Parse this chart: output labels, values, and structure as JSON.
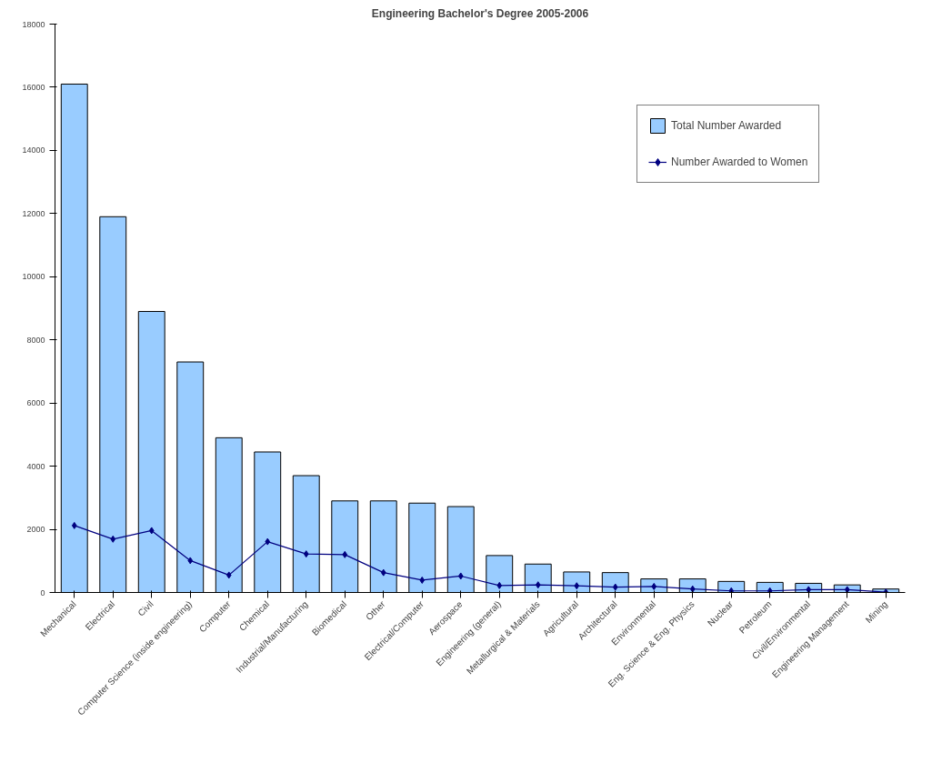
{
  "chart_data": {
    "type": "bar",
    "title": "Engineering Bachelor's Degree 2005-2006",
    "categories": [
      "Mechanical",
      "Electrical",
      "Civil",
      "Computer Science (inside engineering)",
      "Computer",
      "Chemical",
      "Industrial/Manufacturing",
      "Biomedical",
      "Other",
      "Electrical/Computer",
      "Aerospace",
      "Engineering (general)",
      "Metallurgical & Materials",
      "Agricultural",
      "Architectural",
      "Environmental",
      "Eng. Science & Eng. Physics",
      "Nuclear",
      "Petroleum",
      "Civil/Environmental",
      "Engineering Management",
      "Mining"
    ],
    "series": [
      {
        "name": "Total Number Awarded",
        "color": "#99ccff",
        "values": [
          16100,
          11900,
          8900,
          7300,
          4900,
          4450,
          3700,
          2900,
          2900,
          2830,
          2720,
          1170,
          900,
          650,
          630,
          430,
          430,
          350,
          320,
          290,
          240,
          110
        ]
      },
      {
        "name": "Number Awarded to Women",
        "type": "line",
        "color": "#000080",
        "values": [
          2120,
          1690,
          1960,
          1010,
          550,
          1610,
          1220,
          1200,
          630,
          390,
          520,
          220,
          240,
          210,
          170,
          190,
          110,
          50,
          50,
          90,
          90,
          10
        ]
      }
    ],
    "ylim": [
      0,
      18000
    ],
    "yticks": [
      0,
      2000,
      4000,
      6000,
      8000,
      10000,
      12000,
      14000,
      16000,
      18000
    ],
    "grid": false,
    "legend": "right",
    "marker": "diamond",
    "line_style": "solid"
  }
}
